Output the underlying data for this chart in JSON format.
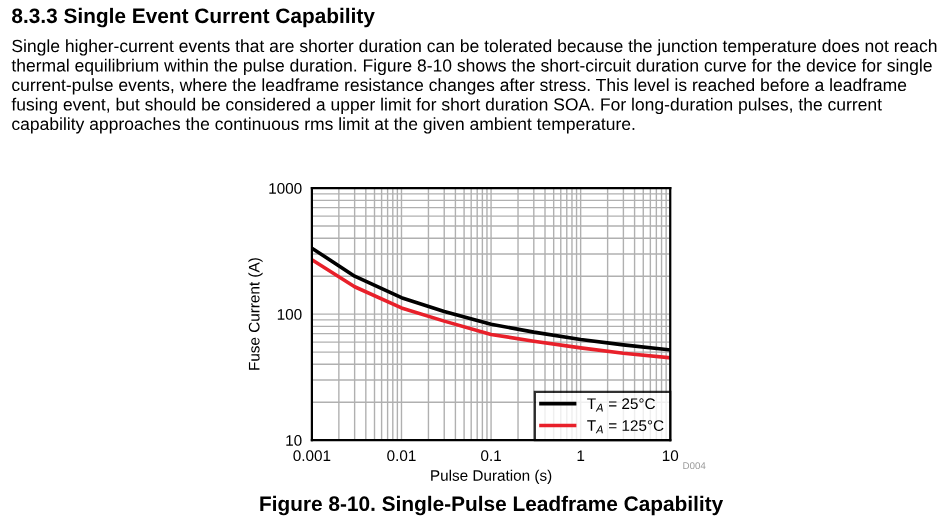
{
  "chart_data": {
    "type": "line",
    "title": "8.3.3 Single Event Current Capability",
    "subtitle": "Single higher-current events that are shorter duration can be tolerated because the junction temperature does not reach thermal equilibrium within the pulse duration. Figure 8-10 shows the short-circuit duration curve for the device for single current-pulse events, where the leadframe resistance changes after stress. This level is reached before a leadframe fusing event, but should be considered a upper limit for short duration SOA. For long-duration pulses, the current capability approaches the continuous rms limit at the given ambient temperature.",
    "xlabel": "Pulse Duration (s)",
    "ylabel": "Fuse Current (A)",
    "x": [
      0.001,
      0.003,
      0.01,
      0.03,
      0.1,
      0.3,
      1,
      3,
      10
    ],
    "series": [
      {
        "name": "T$_{A}$ = 25°C",
        "color": "#000000",
        "values": [
          334,
          200,
          135,
          105,
          83,
          72,
          63,
          57,
          52
        ]
      },
      {
        "name": "T$_{A}$ = 125°C",
        "color": "#e8202a",
        "values": [
          270,
          165,
          112,
          88,
          69,
          61,
          54,
          49,
          45
        ]
      }
    ],
    "log": "xy",
    "xlim": [
      0.001,
      10
    ],
    "ylim": [
      10,
      1000
    ],
    "xticks": [
      0.001,
      0.01,
      0.1,
      1,
      10
    ],
    "yticks": [
      10,
      100,
      1000
    ],
    "grid": true,
    "legend": "bottom right",
    "marker": "none",
    "line_style": "solid",
    "annotations": [
      "D004",
      "Figure 8-10. Single-Pulse Leadframe Capability"
    ]
  }
}
